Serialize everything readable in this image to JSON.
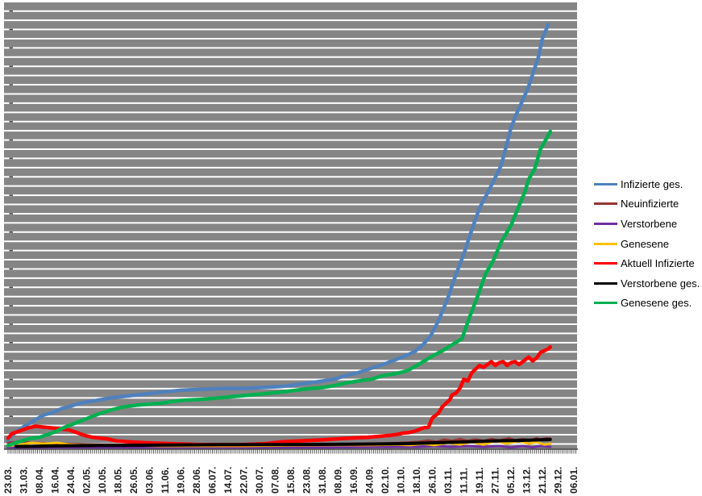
{
  "chart_data": {
    "type": "line",
    "title": "",
    "xlabel": "",
    "ylabel": "",
    "legend_position": "right",
    "grid": "on",
    "plot_bg_color": "#858585",
    "gridline_color": "#ffffff",
    "axis_color": "#4a4a4a",
    "tick_label_color": "#1f1f1f",
    "x_axis": {
      "tick_labels": [
        "23.03.",
        "31.03.",
        "08.04.",
        "16.04.",
        "24.04.",
        "02.05.",
        "10.05.",
        "18.05.",
        "26.05.",
        "03.06.",
        "11.06.",
        "19.06.",
        "28.06.",
        "06.07.",
        "14.07.",
        "22.07.",
        "30.07.",
        "07.08.",
        "15.08.",
        "23.08.",
        "31.08.",
        "08.09.",
        "16.09.",
        "24.09.",
        "02.10.",
        "10.10.",
        "18.10.",
        "26.10.",
        "03.11.",
        "11.11.",
        "19.11.",
        "27.11.",
        "05.12.",
        "13.12.",
        "21.12.",
        "29.12.",
        "06.01."
      ],
      "label_interval_days": 8,
      "minor_tick_every_days": 1,
      "total_days": 289
    },
    "y_axis": {
      "labels_visible": false,
      "unit": "major gridline intervals (numeric y-axis labels are cropped out of the screenshot)",
      "ylim": [
        0,
        48.5
      ],
      "gridline_count": 48
    },
    "series": [
      {
        "name": "Infizierte ges.",
        "color": "#4F81BD",
        "stroke_width": 4.5,
        "points": [
          [
            0,
            1.0
          ],
          [
            2,
            1.5
          ],
          [
            6,
            2.2
          ],
          [
            10,
            2.7
          ],
          [
            14,
            3.2
          ],
          [
            18,
            3.7
          ],
          [
            23,
            4.0
          ],
          [
            27,
            4.4
          ],
          [
            31,
            4.6
          ],
          [
            35,
            4.9
          ],
          [
            39,
            5.1
          ],
          [
            45,
            5.3
          ],
          [
            53,
            5.6
          ],
          [
            62,
            5.8
          ],
          [
            70,
            6.0
          ],
          [
            78,
            6.2
          ],
          [
            88,
            6.4
          ],
          [
            98,
            6.5
          ],
          [
            109,
            6.6
          ],
          [
            119,
            6.6
          ],
          [
            129,
            6.7
          ],
          [
            139,
            6.8
          ],
          [
            150,
            7.1
          ],
          [
            160,
            7.4
          ],
          [
            166,
            7.6
          ],
          [
            172,
            8.0
          ],
          [
            178,
            8.3
          ],
          [
            185,
            8.8
          ],
          [
            191,
            9.2
          ],
          [
            197,
            9.7
          ],
          [
            203,
            10.2
          ],
          [
            207,
            10.6
          ],
          [
            211,
            11.3
          ],
          [
            215,
            12.3
          ],
          [
            219,
            13.9
          ],
          [
            224,
            16.5
          ],
          [
            228,
            19.0
          ],
          [
            232,
            21.2
          ],
          [
            236,
            23.8
          ],
          [
            240,
            26.2
          ],
          [
            244,
            27.8
          ],
          [
            248,
            29.5
          ],
          [
            251,
            30.8
          ],
          [
            254,
            33.2
          ],
          [
            256,
            34.9
          ],
          [
            259,
            36.5
          ],
          [
            262,
            37.9
          ],
          [
            265,
            39.4
          ],
          [
            267,
            40.7
          ],
          [
            270,
            42.6
          ],
          [
            272,
            44.6
          ],
          [
            275,
            46.1
          ]
        ]
      },
      {
        "name": "Neuinfizierte",
        "color": "#963634",
        "stroke_width": 3,
        "points": [
          [
            0,
            0.7
          ],
          [
            6,
            0.8
          ],
          [
            12,
            0.7
          ],
          [
            25,
            0.6
          ],
          [
            41,
            0.5
          ],
          [
            62,
            0.45
          ],
          [
            86,
            0.45
          ],
          [
            115,
            0.45
          ],
          [
            144,
            0.5
          ],
          [
            168,
            0.5
          ],
          [
            189,
            0.6
          ],
          [
            201,
            0.7
          ],
          [
            209,
            0.8
          ],
          [
            214,
            0.95
          ],
          [
            218,
            0.8
          ],
          [
            222,
            1.05
          ],
          [
            226,
            0.9
          ],
          [
            230,
            1.1
          ],
          [
            234,
            0.9
          ],
          [
            238,
            1.05
          ],
          [
            242,
            0.9
          ],
          [
            246,
            1.1
          ],
          [
            250,
            0.95
          ],
          [
            255,
            1.2
          ],
          [
            258,
            0.95
          ],
          [
            262,
            1.1
          ],
          [
            266,
            0.95
          ],
          [
            269,
            1.2
          ],
          [
            271,
            1.05
          ],
          [
            274,
            1.2
          ],
          [
            276,
            1.15
          ]
        ]
      },
      {
        "name": "Verstorbene",
        "color": "#7030A0",
        "stroke_width": 3,
        "points": [
          [
            0,
            0.2
          ],
          [
            37,
            0.2
          ],
          [
            78,
            0.2
          ],
          [
            119,
            0.2
          ],
          [
            160,
            0.2
          ],
          [
            189,
            0.25
          ],
          [
            209,
            0.25
          ],
          [
            217,
            0.35
          ],
          [
            226,
            0.25
          ],
          [
            234,
            0.35
          ],
          [
            242,
            0.25
          ],
          [
            250,
            0.35
          ],
          [
            256,
            0.2
          ],
          [
            262,
            0.35
          ],
          [
            267,
            0.2
          ],
          [
            271,
            0.35
          ],
          [
            276,
            0.25
          ]
        ]
      },
      {
        "name": "Genesene",
        "color": "#FFC000",
        "stroke_width": 3,
        "points": [
          [
            0,
            0.35
          ],
          [
            6,
            0.5
          ],
          [
            12,
            0.7
          ],
          [
            18,
            0.6
          ],
          [
            25,
            0.7
          ],
          [
            31,
            0.5
          ],
          [
            37,
            0.45
          ],
          [
            57,
            0.45
          ],
          [
            78,
            0.35
          ],
          [
            119,
            0.35
          ],
          [
            160,
            0.45
          ],
          [
            185,
            0.45
          ],
          [
            197,
            0.5
          ],
          [
            205,
            0.45
          ],
          [
            211,
            0.6
          ],
          [
            217,
            0.45
          ],
          [
            224,
            0.7
          ],
          [
            230,
            0.5
          ],
          [
            236,
            0.8
          ],
          [
            242,
            0.5
          ],
          [
            248,
            0.9
          ],
          [
            254,
            0.6
          ],
          [
            260,
            0.9
          ],
          [
            265,
            0.6
          ],
          [
            269,
            0.8
          ],
          [
            273,
            0.5
          ],
          [
            276,
            0.6
          ]
        ]
      },
      {
        "name": "Aktuell Infizierte",
        "color": "#FF0000",
        "stroke_width": 4.5,
        "points": [
          [
            0,
            1.2
          ],
          [
            2,
            1.7
          ],
          [
            6,
            2.0
          ],
          [
            10,
            2.3
          ],
          [
            14,
            2.5
          ],
          [
            18,
            2.4
          ],
          [
            23,
            2.3
          ],
          [
            27,
            2.2
          ],
          [
            31,
            2.1
          ],
          [
            35,
            1.8
          ],
          [
            39,
            1.5
          ],
          [
            43,
            1.3
          ],
          [
            47,
            1.2
          ],
          [
            51,
            1.1
          ],
          [
            55,
            0.9
          ],
          [
            62,
            0.8
          ],
          [
            70,
            0.7
          ],
          [
            82,
            0.6
          ],
          [
            98,
            0.5
          ],
          [
            119,
            0.5
          ],
          [
            131,
            0.6
          ],
          [
            139,
            0.8
          ],
          [
            148,
            0.9
          ],
          [
            158,
            1.0
          ],
          [
            166,
            1.1
          ],
          [
            174,
            1.2
          ],
          [
            183,
            1.3
          ],
          [
            189,
            1.4
          ],
          [
            194,
            1.5
          ],
          [
            198,
            1.6
          ],
          [
            201,
            1.75
          ],
          [
            204,
            1.8
          ],
          [
            206,
            1.9
          ],
          [
            209,
            2.1
          ],
          [
            211,
            2.3
          ],
          [
            214,
            2.4
          ],
          [
            216,
            3.4
          ],
          [
            219,
            3.9
          ],
          [
            221,
            4.6
          ],
          [
            223,
            5.0
          ],
          [
            225,
            5.4
          ],
          [
            226,
            5.9
          ],
          [
            228,
            6.1
          ],
          [
            230,
            6.6
          ],
          [
            232,
            7.6
          ],
          [
            234,
            7.4
          ],
          [
            236,
            8.3
          ],
          [
            238,
            8.7
          ],
          [
            240,
            9.1
          ],
          [
            242,
            8.9
          ],
          [
            244,
            9.2
          ],
          [
            246,
            9.5
          ],
          [
            248,
            9.1
          ],
          [
            250,
            9.4
          ],
          [
            252,
            9.5
          ],
          [
            254,
            9.1
          ],
          [
            256,
            9.4
          ],
          [
            258,
            9.5
          ],
          [
            260,
            9.2
          ],
          [
            262,
            9.5
          ],
          [
            265,
            10.0
          ],
          [
            267,
            9.6
          ],
          [
            269,
            9.9
          ],
          [
            271,
            10.5
          ],
          [
            273,
            10.7
          ],
          [
            275,
            10.9
          ],
          [
            276,
            11.1
          ]
        ]
      },
      {
        "name": "Verstorbene ges.",
        "color": "#000000",
        "stroke_width": 4,
        "points": [
          [
            4,
            0.3
          ],
          [
            21,
            0.35
          ],
          [
            45,
            0.4
          ],
          [
            78,
            0.45
          ],
          [
            111,
            0.5
          ],
          [
            144,
            0.5
          ],
          [
            176,
            0.55
          ],
          [
            201,
            0.6
          ],
          [
            217,
            0.7
          ],
          [
            234,
            0.8
          ],
          [
            246,
            0.9
          ],
          [
            258,
            0.95
          ],
          [
            267,
            1.0
          ],
          [
            276,
            1.05
          ]
        ]
      },
      {
        "name": "Genesene ges.",
        "color": "#00B050",
        "stroke_width": 4.5,
        "points": [
          [
            0,
            0.4
          ],
          [
            4,
            0.7
          ],
          [
            10,
            1.1
          ],
          [
            16,
            1.3
          ],
          [
            23,
            1.8
          ],
          [
            29,
            2.4
          ],
          [
            35,
            2.9
          ],
          [
            41,
            3.4
          ],
          [
            47,
            3.9
          ],
          [
            53,
            4.3
          ],
          [
            59,
            4.6
          ],
          [
            66,
            4.8
          ],
          [
            72,
            4.9
          ],
          [
            78,
            5.0
          ],
          [
            88,
            5.3
          ],
          [
            98,
            5.4
          ],
          [
            109,
            5.6
          ],
          [
            119,
            5.8
          ],
          [
            129,
            6.0
          ],
          [
            139,
            6.2
          ],
          [
            150,
            6.5
          ],
          [
            160,
            6.7
          ],
          [
            166,
            6.9
          ],
          [
            172,
            7.2
          ],
          [
            178,
            7.4
          ],
          [
            185,
            7.6
          ],
          [
            191,
            8.0
          ],
          [
            197,
            8.2
          ],
          [
            203,
            8.5
          ],
          [
            209,
            9.2
          ],
          [
            215,
            10.0
          ],
          [
            222,
            10.8
          ],
          [
            228,
            11.6
          ],
          [
            231,
            12.0
          ],
          [
            235,
            14.4
          ],
          [
            239,
            16.6
          ],
          [
            243,
            19.0
          ],
          [
            247,
            20.5
          ],
          [
            251,
            22.5
          ],
          [
            256,
            24.3
          ],
          [
            260,
            26.4
          ],
          [
            263,
            27.9
          ],
          [
            265,
            29.3
          ],
          [
            268,
            30.4
          ],
          [
            271,
            32.6
          ],
          [
            274,
            33.7
          ],
          [
            276,
            34.5
          ]
        ]
      }
    ]
  }
}
